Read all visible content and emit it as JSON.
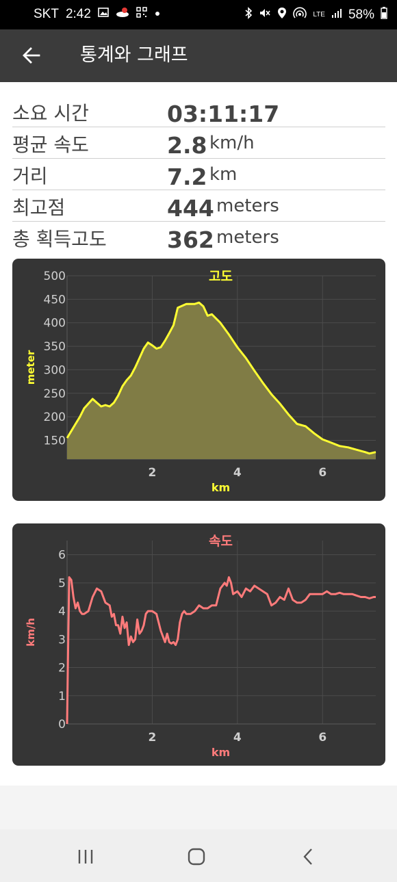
{
  "status_bar": {
    "carrier": "SKT",
    "time": "2:42",
    "network": "LTE",
    "battery": "58%",
    "icons_left": [
      "gallery-icon",
      "notification-icon",
      "qr-icon",
      "dot-icon"
    ],
    "icons_right": [
      "bluetooth-icon",
      "mute-icon",
      "location-icon",
      "hotspot-icon",
      "signal-icon",
      "battery-icon"
    ]
  },
  "app_bar": {
    "back_icon": "arrow-left-icon",
    "title": "통계와 그래프"
  },
  "stats": [
    {
      "label": "소요 시간",
      "value": "03:11:17",
      "unit": ""
    },
    {
      "label": "평균 속도",
      "value": "2.8",
      "unit": "km/h"
    },
    {
      "label": "거리",
      "value": "7.2",
      "unit": "km"
    },
    {
      "label": "최고점",
      "value": "444",
      "unit": "meters"
    },
    {
      "label": "총 획득고도",
      "value": "362",
      "unit": "meters"
    }
  ],
  "charts": {
    "elevation": {
      "title": "고도",
      "xlabel": "km",
      "ylabel": "meter",
      "color": "#ffff33",
      "fill_color": "#807c45"
    },
    "speed": {
      "title": "속도",
      "xlabel": "km",
      "ylabel": "km/h",
      "color": "#ff7b7b"
    }
  },
  "chart_data": [
    {
      "type": "area",
      "title": "고도",
      "xlabel": "km",
      "ylabel": "meter",
      "xlim": [
        0,
        7.25
      ],
      "ylim": [
        110,
        500
      ],
      "xticks": [
        2,
        4,
        6
      ],
      "yticks": [
        150,
        200,
        250,
        300,
        350,
        400,
        450,
        500
      ],
      "grid": true,
      "x": [
        0,
        0.1,
        0.2,
        0.3,
        0.4,
        0.5,
        0.6,
        0.7,
        0.8,
        0.9,
        1.0,
        1.1,
        1.2,
        1.3,
        1.4,
        1.5,
        1.6,
        1.7,
        1.8,
        1.9,
        2.0,
        2.1,
        2.2,
        2.3,
        2.4,
        2.5,
        2.6,
        2.8,
        3.0,
        3.1,
        3.2,
        3.3,
        3.4,
        3.6,
        3.8,
        4.0,
        4.2,
        4.4,
        4.6,
        4.8,
        5.0,
        5.2,
        5.4,
        5.6,
        5.8,
        6.0,
        6.2,
        6.4,
        6.6,
        6.8,
        7.0,
        7.1,
        7.25
      ],
      "values": [
        155,
        170,
        185,
        200,
        218,
        228,
        238,
        230,
        222,
        225,
        222,
        230,
        245,
        265,
        278,
        288,
        305,
        325,
        345,
        358,
        352,
        345,
        348,
        362,
        378,
        395,
        432,
        440,
        440,
        443,
        435,
        415,
        418,
        400,
        375,
        348,
        325,
        298,
        272,
        248,
        228,
        205,
        185,
        180,
        165,
        152,
        145,
        138,
        135,
        130,
        125,
        122,
        125
      ]
    },
    {
      "type": "line",
      "title": "속도",
      "xlabel": "km",
      "ylabel": "km/h",
      "xlim": [
        0,
        7.25
      ],
      "ylim": [
        0,
        6.5
      ],
      "xticks": [
        2,
        4,
        6
      ],
      "yticks": [
        0,
        1,
        2,
        3,
        4,
        5,
        6
      ],
      "grid": true,
      "x": [
        0,
        0.02,
        0.05,
        0.1,
        0.15,
        0.2,
        0.25,
        0.3,
        0.35,
        0.4,
        0.5,
        0.6,
        0.7,
        0.8,
        0.9,
        1.0,
        1.05,
        1.1,
        1.15,
        1.2,
        1.25,
        1.3,
        1.35,
        1.4,
        1.45,
        1.5,
        1.55,
        1.6,
        1.65,
        1.7,
        1.75,
        1.8,
        1.85,
        1.9,
        1.95,
        2.0,
        2.1,
        2.2,
        2.3,
        2.35,
        2.4,
        2.45,
        2.5,
        2.55,
        2.6,
        2.65,
        2.7,
        2.75,
        2.8,
        2.9,
        3.0,
        3.1,
        3.2,
        3.3,
        3.4,
        3.5,
        3.6,
        3.7,
        3.75,
        3.8,
        3.85,
        3.9,
        4.0,
        4.1,
        4.2,
        4.3,
        4.4,
        4.5,
        4.6,
        4.7,
        4.8,
        4.9,
        5.0,
        5.1,
        5.2,
        5.3,
        5.4,
        5.5,
        5.6,
        5.7,
        5.8,
        5.9,
        6.0,
        6.1,
        6.2,
        6.3,
        6.4,
        6.5,
        6.6,
        6.7,
        6.8,
        6.9,
        7.0,
        7.1,
        7.2,
        7.25
      ],
      "values": [
        0,
        2.2,
        5.2,
        5.1,
        4.5,
        4.1,
        4.3,
        4.0,
        3.9,
        3.9,
        4.0,
        4.5,
        4.8,
        4.7,
        4.3,
        4.2,
        3.8,
        3.9,
        3.5,
        3.5,
        3.2,
        3.8,
        3.4,
        3.6,
        2.8,
        3.1,
        2.9,
        3.0,
        3.7,
        3.2,
        3.3,
        3.5,
        3.9,
        4.0,
        4.0,
        4.0,
        3.9,
        3.3,
        2.9,
        3.2,
        2.9,
        2.85,
        2.9,
        2.8,
        3.0,
        3.6,
        3.9,
        4.0,
        3.9,
        3.9,
        4.0,
        4.2,
        4.1,
        4.1,
        4.2,
        4.2,
        4.8,
        5.0,
        4.9,
        5.2,
        5.0,
        4.6,
        4.7,
        4.5,
        4.8,
        4.7,
        4.9,
        4.8,
        4.7,
        4.6,
        4.2,
        4.3,
        4.5,
        4.4,
        4.8,
        4.4,
        4.3,
        4.3,
        4.4,
        4.6,
        4.6,
        4.6,
        4.6,
        4.7,
        4.6,
        4.6,
        4.65,
        4.6,
        4.6,
        4.6,
        4.55,
        4.5,
        4.5,
        4.45,
        4.5,
        4.5
      ]
    }
  ],
  "nav_bar": {
    "recent_icon": "recent-apps-icon",
    "home_icon": "home-icon",
    "back_icon": "back-chevron-icon"
  }
}
